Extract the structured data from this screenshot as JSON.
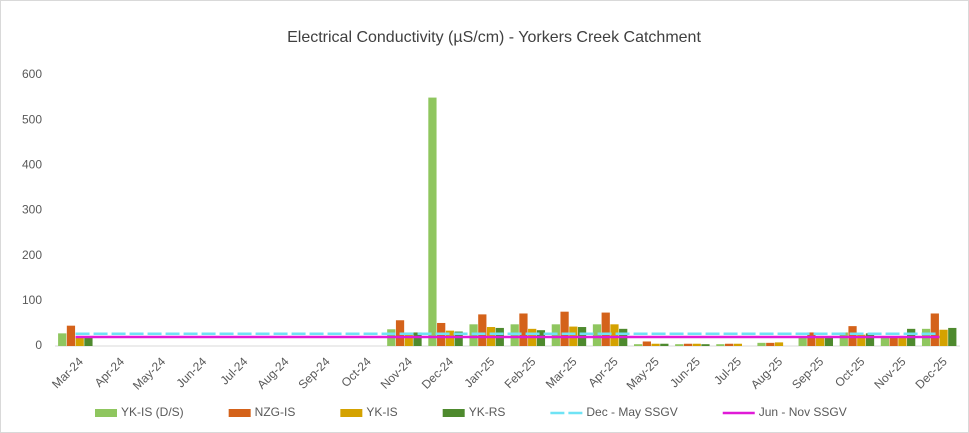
{
  "chart_data": {
    "type": "bar",
    "title": "Electrical Conductivity (µS/cm) - Yorkers Creek Catchment",
    "categories": [
      "Mar-24",
      "Apr-24",
      "May-24",
      "Jun-24",
      "Jul-24",
      "Aug-24",
      "Sep-24",
      "Oct-24",
      "Nov-24",
      "Dec-24",
      "Jan-25",
      "Feb-25",
      "Mar-25",
      "Apr-25",
      "May-25",
      "Jun-25",
      "Jul-25",
      "Aug-25",
      "Sep-25",
      "Oct-25",
      "Nov-25",
      "Dec-25"
    ],
    "series": [
      {
        "name": "YK-IS (D/S)",
        "color": "#8fc65f",
        "values": [
          28,
          null,
          null,
          null,
          null,
          null,
          null,
          null,
          37,
          550,
          48,
          48,
          48,
          48,
          4,
          4,
          4,
          7,
          18,
          30,
          22,
          38
        ]
      },
      {
        "name": "NZG-IS",
        "color": "#d4621a",
        "values": [
          45,
          null,
          null,
          null,
          null,
          null,
          null,
          null,
          57,
          51,
          70,
          72,
          76,
          74,
          10,
          5,
          5,
          7,
          30,
          44,
          20,
          72
        ]
      },
      {
        "name": "YK-IS",
        "color": "#d4a200",
        "values": [
          18,
          null,
          null,
          null,
          null,
          null,
          null,
          null,
          30,
          34,
          42,
          38,
          43,
          48,
          5,
          5,
          5,
          8,
          20,
          25,
          18,
          36
        ]
      },
      {
        "name": "YK-RS",
        "color": "#4e8a2e",
        "values": [
          18,
          null,
          null,
          null,
          null,
          null,
          null,
          null,
          30,
          32,
          40,
          35,
          42,
          38,
          5,
          4,
          null,
          null,
          18,
          28,
          38,
          40
        ]
      },
      {
        "name": "Dec - May SSGV",
        "color": "#6fe3f5",
        "kind": "line",
        "dashed": true,
        "values": [
          27,
          27,
          27,
          27,
          27,
          27,
          27,
          27,
          27,
          27,
          27,
          27,
          27,
          27,
          27,
          27,
          27,
          27,
          27,
          27,
          27,
          27
        ]
      },
      {
        "name": "Jun - Nov SSGV",
        "color": "#e01ad7",
        "kind": "line",
        "values": [
          20,
          20,
          20,
          20,
          20,
          20,
          20,
          20,
          20,
          20,
          20,
          20,
          20,
          20,
          20,
          20,
          20,
          20,
          20,
          20,
          20,
          20
        ]
      }
    ],
    "ylim": [
      0,
      600
    ],
    "yticks": [
      0,
      100,
      200,
      300,
      400,
      500,
      600
    ],
    "grid": false,
    "legend": "bottom"
  }
}
